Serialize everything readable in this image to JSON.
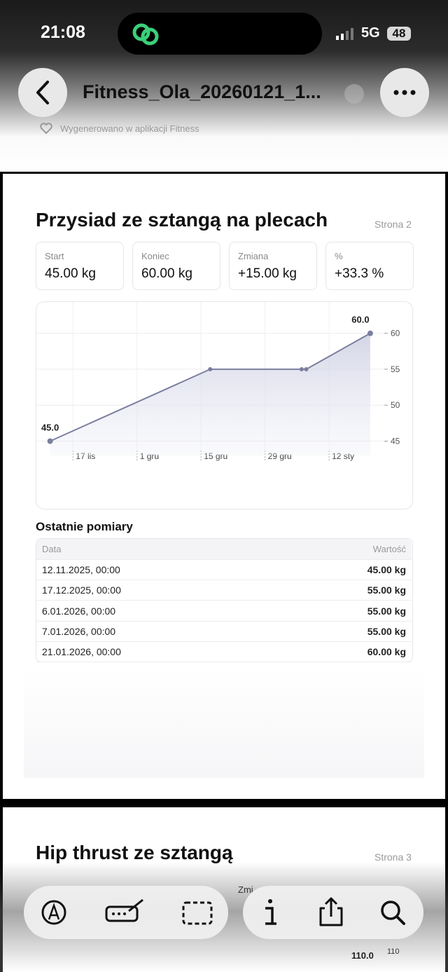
{
  "status": {
    "time": "21:08",
    "network": "5G",
    "battery": "48"
  },
  "header": {
    "title": "Fitness_Ola_20260121_1...",
    "subtitle": "Wygenerowano w aplikacji Fitness"
  },
  "page2": {
    "title": "Przysiad ze sztangą na plecach",
    "page_label": "Strona 2",
    "stats": [
      {
        "label": "Start",
        "value": "45.00 kg"
      },
      {
        "label": "Koniec",
        "value": "60.00 kg"
      },
      {
        "label": "Zmiana",
        "value": "+15.00 kg"
      },
      {
        "label": "%",
        "value": "+33.3 %"
      }
    ],
    "chart": {
      "type": "line",
      "x": [
        "2025-11-12",
        "2025-12-17",
        "2026-01-06",
        "2026-01-07",
        "2026-01-21"
      ],
      "values": [
        45,
        55,
        55,
        55,
        60
      ],
      "value_labels": [
        "45.0",
        null,
        null,
        null,
        "60.0"
      ],
      "color": "#7b7f9e",
      "xlim": [
        "2025-11-09",
        "2026-01-23"
      ],
      "xticks": [
        {
          "value": "2025-11-17",
          "label": "17 lis"
        },
        {
          "value": "2025-12-01",
          "label": "1 gru"
        },
        {
          "value": "2025-12-15",
          "label": "15 gru"
        },
        {
          "value": "2025-12-29",
          "label": "29 gru"
        },
        {
          "value": "2026-01-12",
          "label": "12 sty"
        }
      ],
      "ylim": [
        43,
        62.5
      ],
      "yticks": [
        45,
        50,
        55,
        60
      ],
      "grid": true
    },
    "table_title": "Ostatnie pomiary",
    "table": {
      "header": [
        "Data",
        "Wartość"
      ],
      "rows": [
        [
          "12.11.2025, 00:00",
          "45.00 kg"
        ],
        [
          "17.12.2025, 00:00",
          "55.00 kg"
        ],
        [
          "6.01.2026, 00:00",
          "55.00 kg"
        ],
        [
          "7.01.2026, 00:00",
          "55.00 kg"
        ],
        [
          "21.01.2026, 00:00",
          "60.00 kg"
        ]
      ]
    }
  },
  "page3": {
    "title": "Hip thrust ze sztangą",
    "page_label": "Strona 3",
    "partial_label": "Zmi",
    "point_label": "110.0",
    "tick_label": "110"
  }
}
